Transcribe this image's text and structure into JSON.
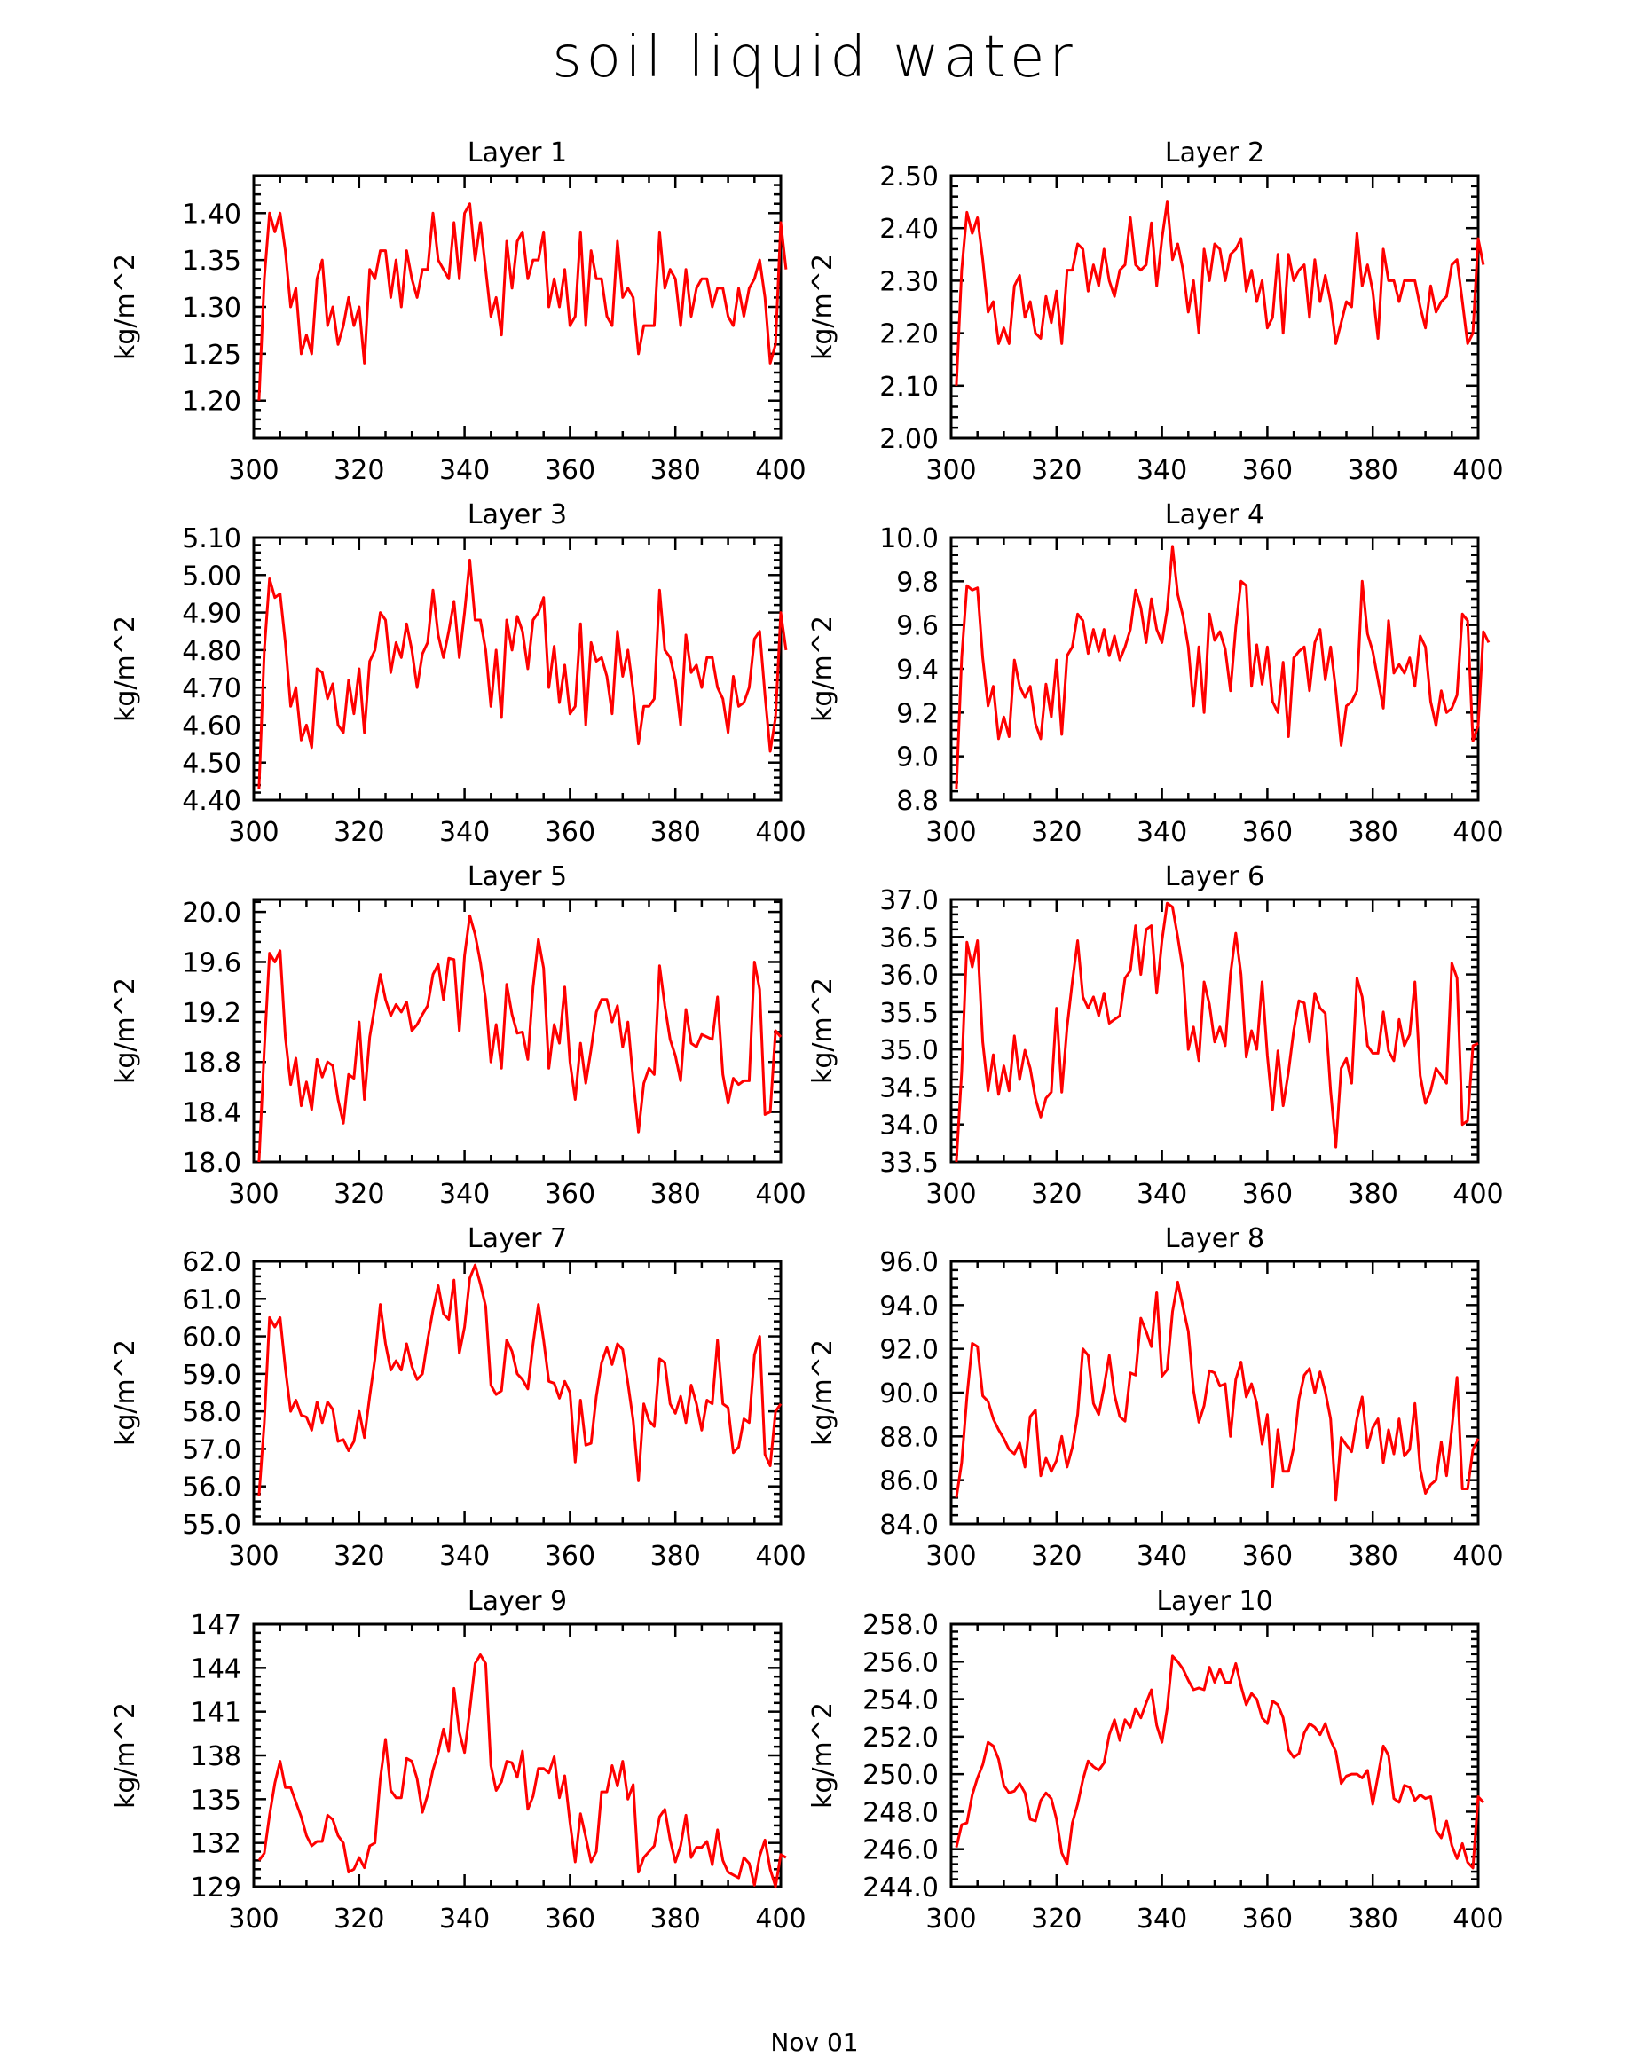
{
  "title": "soil liquid water",
  "bottom_label": "Nov 01",
  "series_color": "#ff0000",
  "chart_data": [
    {
      "type": "line",
      "title": "Layer 1",
      "ylabel": "kg/m^2",
      "xlim": [
        300,
        400
      ],
      "ylim": [
        1.16,
        1.44
      ],
      "xticks": [
        "300",
        "320",
        "340",
        "360",
        "380",
        "400"
      ],
      "yticks": [
        "1.20",
        "1.25",
        "1.30",
        "1.35",
        "1.40"
      ],
      "x_start": 301,
      "values": [
        1.2,
        1.33,
        1.4,
        1.38,
        1.4,
        1.36,
        1.3,
        1.32,
        1.25,
        1.27,
        1.25,
        1.33,
        1.35,
        1.28,
        1.3,
        1.26,
        1.28,
        1.31,
        1.28,
        1.3,
        1.24,
        1.34,
        1.33,
        1.36,
        1.36,
        1.31,
        1.35,
        1.3,
        1.36,
        1.33,
        1.31,
        1.34,
        1.34,
        1.4,
        1.35,
        1.34,
        1.33,
        1.39,
        1.33,
        1.4,
        1.41,
        1.35,
        1.39,
        1.34,
        1.29,
        1.31,
        1.27,
        1.37,
        1.32,
        1.37,
        1.38,
        1.33,
        1.35,
        1.35,
        1.38,
        1.3,
        1.33,
        1.3,
        1.34,
        1.28,
        1.29,
        1.38,
        1.28,
        1.36,
        1.33,
        1.33,
        1.29,
        1.28,
        1.37,
        1.31,
        1.32,
        1.31,
        1.25,
        1.28,
        1.28,
        1.28,
        1.38,
        1.32,
        1.34,
        1.33,
        1.28,
        1.34,
        1.29,
        1.32,
        1.33,
        1.33,
        1.3,
        1.32,
        1.32,
        1.29,
        1.28,
        1.32,
        1.29,
        1.32,
        1.33,
        1.35,
        1.31,
        1.24,
        1.26,
        1.39,
        1.34
      ]
    },
    {
      "type": "line",
      "title": "Layer 2",
      "ylabel": "kg/m^2",
      "xlim": [
        300,
        400
      ],
      "ylim": [
        2.0,
        2.5
      ],
      "xticks": [
        "300",
        "320",
        "340",
        "360",
        "380",
        "400"
      ],
      "yticks": [
        "2.00",
        "2.10",
        "2.20",
        "2.30",
        "2.40",
        "2.50"
      ],
      "x_start": 301,
      "values": [
        2.1,
        2.32,
        2.43,
        2.39,
        2.42,
        2.34,
        2.24,
        2.26,
        2.18,
        2.21,
        2.18,
        2.29,
        2.31,
        2.23,
        2.26,
        2.2,
        2.19,
        2.27,
        2.22,
        2.28,
        2.18,
        2.32,
        2.32,
        2.37,
        2.36,
        2.28,
        2.33,
        2.29,
        2.36,
        2.3,
        2.27,
        2.32,
        2.33,
        2.42,
        2.33,
        2.32,
        2.33,
        2.41,
        2.29,
        2.38,
        2.45,
        2.34,
        2.37,
        2.32,
        2.24,
        2.3,
        2.2,
        2.36,
        2.3,
        2.37,
        2.36,
        2.3,
        2.35,
        2.36,
        2.38,
        2.28,
        2.32,
        2.26,
        2.3,
        2.21,
        2.23,
        2.35,
        2.2,
        2.35,
        2.3,
        2.32,
        2.33,
        2.23,
        2.34,
        2.26,
        2.31,
        2.26,
        2.18,
        2.22,
        2.26,
        2.25,
        2.39,
        2.29,
        2.33,
        2.28,
        2.19,
        2.36,
        2.3,
        2.3,
        2.26,
        2.3,
        2.3,
        2.3,
        2.25,
        2.21,
        2.29,
        2.24,
        2.26,
        2.27,
        2.33,
        2.34,
        2.26,
        2.18,
        2.2,
        2.38,
        2.33
      ]
    },
    {
      "type": "line",
      "title": "Layer 3",
      "ylabel": "kg/m^2",
      "xlim": [
        300,
        400
      ],
      "ylim": [
        4.4,
        5.1
      ],
      "xticks": [
        "300",
        "320",
        "340",
        "360",
        "380",
        "400"
      ],
      "yticks": [
        "4.40",
        "4.50",
        "4.60",
        "4.70",
        "4.80",
        "4.90",
        "5.00",
        "5.10"
      ],
      "x_start": 301,
      "values": [
        4.43,
        4.8,
        4.99,
        4.94,
        4.95,
        4.82,
        4.65,
        4.7,
        4.56,
        4.6,
        4.54,
        4.75,
        4.74,
        4.67,
        4.71,
        4.6,
        4.58,
        4.72,
        4.63,
        4.75,
        4.58,
        4.77,
        4.8,
        4.9,
        4.88,
        4.74,
        4.82,
        4.78,
        4.87,
        4.8,
        4.7,
        4.79,
        4.82,
        4.96,
        4.84,
        4.78,
        4.85,
        4.93,
        4.78,
        4.9,
        5.04,
        4.88,
        4.88,
        4.8,
        4.65,
        4.8,
        4.62,
        4.88,
        4.8,
        4.89,
        4.85,
        4.75,
        4.88,
        4.9,
        4.94,
        4.7,
        4.81,
        4.66,
        4.76,
        4.63,
        4.65,
        4.87,
        4.6,
        4.82,
        4.77,
        4.78,
        4.73,
        4.63,
        4.85,
        4.73,
        4.8,
        4.69,
        4.55,
        4.65,
        4.65,
        4.67,
        4.96,
        4.8,
        4.78,
        4.72,
        4.6,
        4.84,
        4.74,
        4.76,
        4.7,
        4.78,
        4.78,
        4.7,
        4.67,
        4.58,
        4.73,
        4.65,
        4.66,
        4.7,
        4.83,
        4.85,
        4.68,
        4.53,
        4.62,
        4.9,
        4.8
      ]
    },
    {
      "type": "line",
      "title": "Layer 4",
      "ylabel": "kg/m^2",
      "xlim": [
        300,
        400
      ],
      "ylim": [
        8.8,
        10.0
      ],
      "xticks": [
        "300",
        "320",
        "340",
        "360",
        "380",
        "400"
      ],
      "yticks": [
        "8.8",
        "9.0",
        "9.2",
        "9.4",
        "9.6",
        "9.8",
        "10.0"
      ],
      "x_start": 301,
      "values": [
        8.85,
        9.45,
        9.78,
        9.76,
        9.77,
        9.45,
        9.23,
        9.32,
        9.08,
        9.18,
        9.09,
        9.44,
        9.32,
        9.27,
        9.32,
        9.15,
        9.08,
        9.33,
        9.18,
        9.44,
        9.1,
        9.46,
        9.5,
        9.65,
        9.62,
        9.47,
        9.58,
        9.48,
        9.58,
        9.46,
        9.55,
        9.44,
        9.5,
        9.58,
        9.76,
        9.68,
        9.52,
        9.72,
        9.58,
        9.52,
        9.67,
        9.96,
        9.74,
        9.64,
        9.5,
        9.23,
        9.5,
        9.2,
        9.65,
        9.53,
        9.57,
        9.49,
        9.3,
        9.59,
        9.8,
        9.78,
        9.32,
        9.51,
        9.33,
        9.5,
        9.25,
        9.2,
        9.43,
        9.09,
        9.45,
        9.48,
        9.5,
        9.3,
        9.52,
        9.58,
        9.35,
        9.5,
        9.3,
        9.05,
        9.23,
        9.25,
        9.3,
        9.8,
        9.56,
        9.48,
        9.35,
        9.22,
        9.62,
        9.38,
        9.42,
        9.38,
        9.45,
        9.32,
        9.55,
        9.5,
        9.25,
        9.14,
        9.3,
        9.2,
        9.22,
        9.28,
        9.65,
        9.62,
        9.07,
        9.14,
        9.57,
        9.52
      ]
    },
    {
      "type": "line",
      "title": "Layer 5",
      "ylabel": "kg/m^2",
      "xlim": [
        300,
        400
      ],
      "ylim": [
        18.0,
        20.1
      ],
      "xticks": [
        "300",
        "320",
        "340",
        "360",
        "380",
        "400"
      ],
      "yticks": [
        "18.0",
        "18.4",
        "18.8",
        "19.2",
        "19.6",
        "20.0"
      ],
      "x_start": 301,
      "values": [
        18.0,
        18.9,
        19.67,
        19.6,
        19.69,
        19.0,
        18.62,
        18.83,
        18.45,
        18.64,
        18.42,
        18.82,
        18.68,
        18.8,
        18.77,
        18.5,
        18.31,
        18.7,
        18.67,
        19.12,
        18.5,
        19.0,
        19.25,
        19.5,
        19.3,
        19.17,
        19.26,
        19.2,
        19.28,
        19.05,
        19.1,
        19.18,
        19.25,
        19.5,
        19.58,
        19.3,
        19.63,
        19.62,
        19.05,
        19.65,
        19.97,
        19.82,
        19.6,
        19.3,
        18.8,
        19.1,
        18.75,
        19.42,
        19.18,
        19.03,
        19.04,
        18.82,
        19.4,
        19.78,
        19.55,
        18.75,
        19.1,
        18.95,
        19.4,
        18.8,
        18.5,
        18.95,
        18.63,
        18.9,
        19.2,
        19.3,
        19.3,
        19.12,
        19.25,
        18.92,
        19.12,
        18.65,
        18.24,
        18.63,
        18.75,
        18.7,
        19.57,
        19.25,
        18.98,
        18.85,
        18.65,
        19.22,
        18.95,
        18.92,
        19.02,
        19.0,
        18.98,
        19.32,
        18.7,
        18.47,
        18.67,
        18.62,
        18.65,
        18.65,
        19.6,
        19.38,
        18.38,
        18.4,
        19.05,
        19.0
      ]
    },
    {
      "type": "line",
      "title": "Layer 6",
      "ylabel": "kg/m^2",
      "xlim": [
        300,
        400
      ],
      "ylim": [
        33.5,
        37.0
      ],
      "xticks": [
        "300",
        "320",
        "340",
        "360",
        "380",
        "400"
      ],
      "yticks": [
        "33.5",
        "34.0",
        "34.5",
        "35.0",
        "35.5",
        "36.0",
        "36.5",
        "37.0"
      ],
      "x_start": 301,
      "values": [
        33.5,
        34.7,
        36.43,
        36.1,
        36.45,
        35.1,
        34.45,
        34.93,
        34.4,
        34.78,
        34.45,
        35.18,
        34.6,
        34.99,
        34.75,
        34.35,
        34.1,
        34.35,
        34.43,
        35.55,
        34.43,
        35.3,
        35.9,
        36.45,
        35.7,
        35.55,
        35.7,
        35.45,
        35.75,
        35.35,
        35.4,
        35.45,
        35.95,
        36.05,
        36.65,
        36.0,
        36.6,
        36.65,
        35.75,
        36.45,
        36.95,
        36.9,
        36.5,
        36.05,
        35.0,
        35.3,
        34.85,
        35.9,
        35.6,
        35.1,
        35.3,
        35.05,
        36.0,
        36.55,
        36.0,
        34.9,
        35.25,
        35.0,
        35.9,
        34.92,
        34.2,
        34.98,
        34.25,
        34.7,
        35.25,
        35.65,
        35.62,
        35.1,
        35.75,
        35.55,
        35.48,
        34.45,
        33.7,
        34.75,
        34.88,
        34.55,
        35.95,
        35.7,
        35.05,
        34.95,
        34.95,
        35.5,
        34.98,
        34.85,
        35.4,
        35.05,
        35.2,
        35.9,
        34.65,
        34.28,
        34.45,
        34.75,
        34.65,
        34.55,
        36.15,
        35.95,
        34.0,
        34.05,
        35.05,
        35.08
      ]
    },
    {
      "type": "line",
      "title": "Layer 7",
      "ylabel": "kg/m^2",
      "xlim": [
        300,
        400
      ],
      "ylim": [
        55.0,
        62.0
      ],
      "xticks": [
        "300",
        "320",
        "340",
        "360",
        "380",
        "400"
      ],
      "yticks": [
        "55.0",
        "56.0",
        "57.0",
        "58.0",
        "59.0",
        "60.0",
        "61.0",
        "62.0"
      ],
      "x_start": 301,
      "values": [
        55.75,
        57.7,
        60.5,
        60.25,
        60.5,
        59.15,
        58.0,
        58.3,
        57.9,
        57.85,
        57.5,
        58.25,
        57.7,
        58.25,
        58.05,
        57.2,
        57.25,
        56.95,
        57.2,
        58.0,
        57.3,
        58.4,
        59.4,
        60.85,
        59.8,
        59.1,
        59.35,
        59.1,
        59.8,
        59.2,
        58.85,
        59.0,
        59.9,
        60.7,
        61.35,
        60.6,
        60.45,
        61.5,
        59.55,
        60.25,
        61.55,
        61.9,
        61.4,
        60.8,
        58.7,
        58.45,
        58.55,
        59.9,
        59.6,
        59.0,
        58.85,
        58.6,
        59.8,
        60.85,
        59.9,
        58.8,
        58.75,
        58.35,
        58.8,
        58.5,
        56.65,
        58.3,
        57.1,
        57.15,
        58.4,
        59.3,
        59.7,
        59.25,
        59.8,
        59.65,
        58.75,
        57.75,
        56.15,
        58.2,
        57.75,
        57.6,
        59.4,
        59.3,
        58.2,
        57.95,
        58.4,
        57.7,
        58.7,
        58.2,
        57.5,
        58.3,
        58.2,
        59.9,
        58.2,
        58.1,
        56.9,
        57.05,
        57.8,
        57.7,
        59.5,
        60.0,
        56.85,
        56.55,
        58.0,
        58.2
      ]
    },
    {
      "type": "line",
      "title": "Layer 8",
      "ylabel": "kg/m^2",
      "xlim": [
        300,
        400
      ],
      "ylim": [
        84.0,
        96.0
      ],
      "xticks": [
        "300",
        "320",
        "340",
        "360",
        "380",
        "400"
      ],
      "yticks": [
        "84.0",
        "86.0",
        "88.0",
        "90.0",
        "92.0",
        "94.0",
        "96.0"
      ],
      "x_start": 301,
      "values": [
        85.2,
        86.8,
        89.8,
        92.25,
        92.1,
        89.85,
        89.6,
        88.8,
        88.3,
        87.9,
        87.4,
        87.2,
        87.7,
        86.6,
        88.9,
        89.2,
        86.2,
        87.0,
        86.4,
        86.9,
        88.0,
        86.6,
        87.5,
        89.0,
        92.0,
        91.7,
        89.5,
        89.0,
        90.25,
        91.7,
        89.9,
        88.9,
        88.7,
        90.9,
        90.8,
        93.4,
        92.8,
        92.1,
        94.6,
        90.75,
        91.05,
        93.7,
        95.05,
        93.9,
        92.8,
        90.1,
        88.65,
        89.4,
        91.0,
        90.9,
        90.3,
        90.4,
        88.0,
        90.6,
        91.4,
        89.8,
        90.4,
        89.5,
        87.65,
        89.0,
        85.7,
        88.3,
        86.4,
        86.4,
        87.5,
        89.7,
        90.8,
        91.1,
        90.0,
        90.95,
        90.05,
        88.8,
        85.1,
        87.95,
        87.6,
        87.3,
        88.8,
        89.8,
        87.5,
        88.4,
        88.8,
        86.8,
        88.3,
        87.2,
        88.8,
        87.1,
        87.4,
        89.5,
        86.5,
        85.4,
        85.8,
        86.0,
        87.75,
        86.2,
        88.35,
        90.7,
        85.6,
        85.6,
        87.4,
        87.9
      ]
    },
    {
      "type": "line",
      "title": "Layer 9",
      "ylabel": "kg/m^2",
      "xlim": [
        300,
        400
      ],
      "ylim": [
        129,
        147
      ],
      "xticks": [
        "300",
        "320",
        "340",
        "360",
        "380",
        "400"
      ],
      "yticks": [
        "129",
        "132",
        "135",
        "138",
        "141",
        "144",
        "147"
      ],
      "x_start": 301,
      "values": [
        130.8,
        131.3,
        133.9,
        136.1,
        137.6,
        135.8,
        135.8,
        134.8,
        133.8,
        132.5,
        131.8,
        132.1,
        132.1,
        133.9,
        133.6,
        132.5,
        132.0,
        130.0,
        130.2,
        131.0,
        130.3,
        131.8,
        132.0,
        136.4,
        139.1,
        135.6,
        135.1,
        135.1,
        137.8,
        137.6,
        136.4,
        134.1,
        135.3,
        137.0,
        138.2,
        139.8,
        138.3,
        142.6,
        139.6,
        138.2,
        141.1,
        144.3,
        144.9,
        144.3,
        137.3,
        135.6,
        136.2,
        137.6,
        137.5,
        136.5,
        138.3,
        134.3,
        135.2,
        137.1,
        137.1,
        136.8,
        137.9,
        135.1,
        136.6,
        133.4,
        130.7,
        134.0,
        132.4,
        130.7,
        131.4,
        135.5,
        135.5,
        137.3,
        135.9,
        137.6,
        135.0,
        136.0,
        130.0,
        131.0,
        131.4,
        131.8,
        133.8,
        134.3,
        132.2,
        130.7,
        131.8,
        133.9,
        131.0,
        131.7,
        131.7,
        132.1,
        130.5,
        132.9,
        130.8,
        130.0,
        129.8,
        129.6,
        131.0,
        130.6,
        129.1,
        131.1,
        132.2,
        130.2,
        129.0,
        131.2,
        131.0
      ]
    },
    {
      "type": "line",
      "title": "Layer 10",
      "ylabel": "kg/m^2",
      "xlim": [
        300,
        400
      ],
      "ylim": [
        244.0,
        258.0
      ],
      "xticks": [
        "300",
        "320",
        "340",
        "360",
        "380",
        "400"
      ],
      "yticks": [
        "244.0",
        "246.0",
        "248.0",
        "250.0",
        "252.0",
        "254.0",
        "256.0",
        "258.0"
      ],
      "x_start": 301,
      "values": [
        246.1,
        247.3,
        247.4,
        248.9,
        249.8,
        250.5,
        251.7,
        251.5,
        250.8,
        249.4,
        249.0,
        249.1,
        249.5,
        249.0,
        247.6,
        247.5,
        248.6,
        249.0,
        248.7,
        247.6,
        245.8,
        245.2,
        247.4,
        248.4,
        249.7,
        250.7,
        250.4,
        250.2,
        250.6,
        252.1,
        252.9,
        251.8,
        252.9,
        252.5,
        253.5,
        253.0,
        253.8,
        254.5,
        252.6,
        251.7,
        253.5,
        256.3,
        256.0,
        255.6,
        255.0,
        254.5,
        254.6,
        254.5,
        255.7,
        254.9,
        255.6,
        254.9,
        254.9,
        255.9,
        254.7,
        253.7,
        254.3,
        254.0,
        253.0,
        252.7,
        253.9,
        253.7,
        253.0,
        251.3,
        250.9,
        251.1,
        252.2,
        252.7,
        252.5,
        252.1,
        252.7,
        251.8,
        251.2,
        249.5,
        249.9,
        250.0,
        250.0,
        249.8,
        250.2,
        248.4,
        249.9,
        251.5,
        251.0,
        248.7,
        248.5,
        249.4,
        249.3,
        248.6,
        248.9,
        248.7,
        248.8,
        247.0,
        246.6,
        247.5,
        246.2,
        245.5,
        246.3,
        245.3,
        245.0,
        248.8,
        248.5
      ]
    }
  ]
}
